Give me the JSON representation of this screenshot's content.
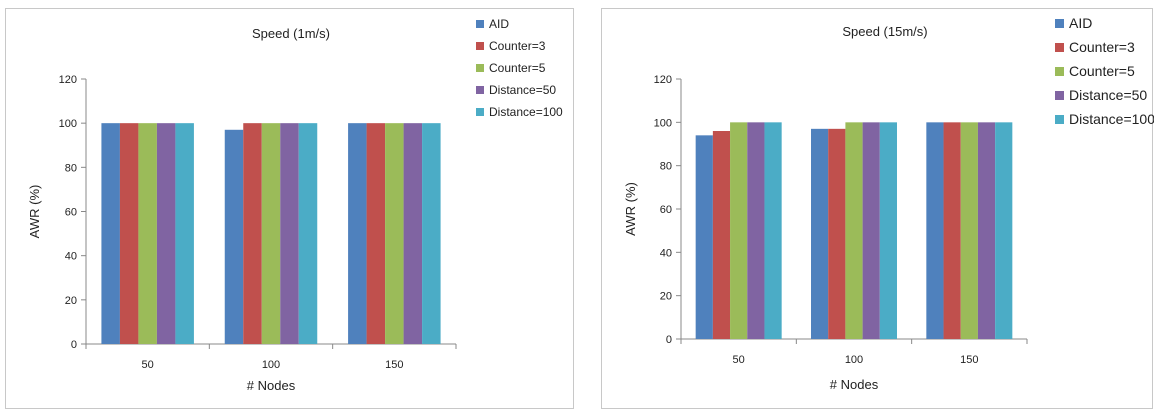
{
  "colors": {
    "AID": "#4F81BD",
    "Counter=3": "#C0504D",
    "Counter=5": "#9BBB59",
    "Distance=50": "#8064A2",
    "Distance=100": "#4BACC6"
  },
  "chart_data": [
    {
      "type": "bar",
      "title": "Speed (1m/s)",
      "xlabel": "# Nodes",
      "ylabel": "AWR (%)",
      "ylim": [
        0,
        120
      ],
      "yticks": [
        "0",
        "20",
        "40",
        "60",
        "80",
        "100",
        "120"
      ],
      "categories": [
        "50",
        "100",
        "150"
      ],
      "grid": false,
      "legend_position": "top-right",
      "series": [
        {
          "name": "AID",
          "values": [
            100,
            97,
            100
          ]
        },
        {
          "name": "Counter=3",
          "values": [
            100,
            100,
            100
          ]
        },
        {
          "name": "Counter=5",
          "values": [
            100,
            100,
            100
          ]
        },
        {
          "name": "Distance=50",
          "values": [
            100,
            100,
            100
          ]
        },
        {
          "name": "Distance=100",
          "values": [
            100,
            100,
            100
          ]
        }
      ]
    },
    {
      "type": "bar",
      "title": "Speed (15m/s)",
      "xlabel": "# Nodes",
      "ylabel": "AWR (%)",
      "ylim": [
        0,
        120
      ],
      "yticks": [
        "0",
        "20",
        "40",
        "60",
        "80",
        "100",
        "120"
      ],
      "categories": [
        "50",
        "100",
        "150"
      ],
      "grid": false,
      "legend_position": "top-right",
      "series": [
        {
          "name": "AID",
          "values": [
            94,
            97,
            100
          ]
        },
        {
          "name": "Counter=3",
          "values": [
            96,
            97,
            100
          ]
        },
        {
          "name": "Counter=5",
          "values": [
            100,
            100,
            100
          ]
        },
        {
          "name": "Distance=50",
          "values": [
            100,
            100,
            100
          ]
        },
        {
          "name": "Distance=100",
          "values": [
            100,
            100,
            100
          ]
        }
      ]
    }
  ]
}
